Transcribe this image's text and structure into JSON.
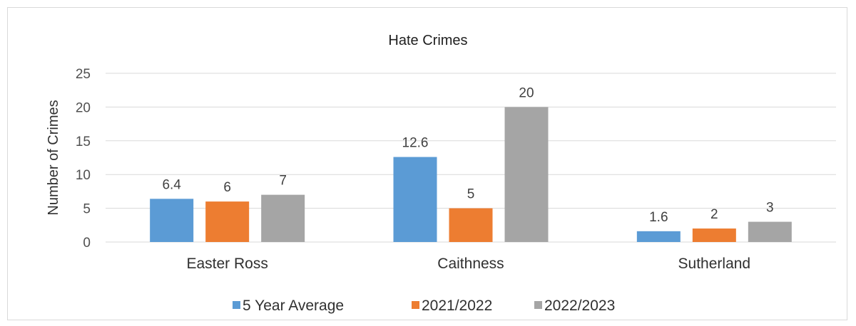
{
  "chart_data": {
    "type": "bar",
    "title": "Hate Crimes",
    "ylabel": "Number of Crimes",
    "xlabel": "",
    "categories": [
      "Easter Ross",
      "Caithness",
      "Sutherland"
    ],
    "series": [
      {
        "name": "5 Year Average",
        "values": [
          6.4,
          12.6,
          1.6
        ],
        "color": "#5b9bd5"
      },
      {
        "name": "2021/2022",
        "values": [
          6,
          5,
          2
        ],
        "color": "#ed7d31"
      },
      {
        "name": "2022/2023",
        "values": [
          7,
          20,
          3
        ],
        "color": "#a5a5a5"
      }
    ],
    "ylim": [
      0,
      25
    ],
    "yticks": [
      0,
      5,
      10,
      15,
      20,
      25
    ],
    "grid": true,
    "legend_position": "bottom"
  }
}
